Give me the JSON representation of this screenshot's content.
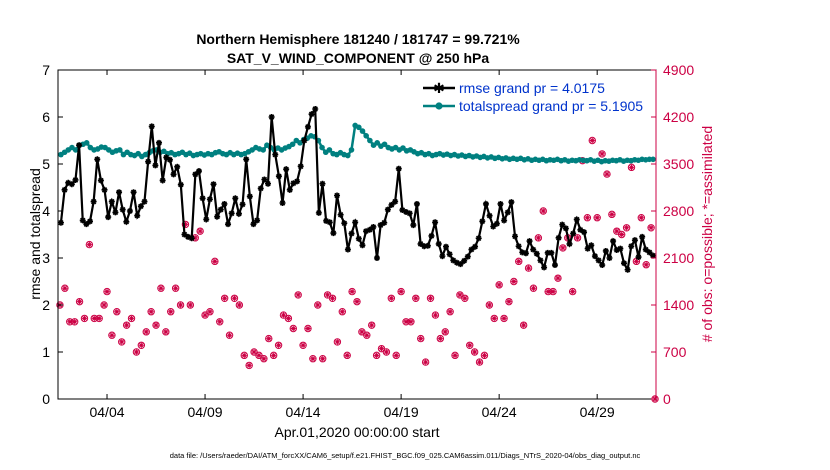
{
  "chart_data": {
    "type": "line",
    "title": [
      "Northern Hemisphere 181240 / 181747 = 99.721%",
      "SAT_V_WIND_COMPONENT @ 250 hPa"
    ],
    "xlabel": "Apr.01,2020 00:00:00 start",
    "ylabel_left": "rmse and totalspread",
    "ylabel_right": "# of obs: o=possible; *=assimilated",
    "xlim": [
      0,
      30.5
    ],
    "ylim_left": [
      0,
      7
    ],
    "ylim_right": [
      0,
      4900
    ],
    "x_ticks": [
      {
        "x": 2.5,
        "label": "04/04"
      },
      {
        "x": 7.5,
        "label": "04/09"
      },
      {
        "x": 12.5,
        "label": "04/14"
      },
      {
        "x": 17.5,
        "label": "04/19"
      },
      {
        "x": 22.5,
        "label": "04/24"
      },
      {
        "x": 27.5,
        "label": "04/29"
      }
    ],
    "y_ticks_left": [
      "0",
      "1",
      "2",
      "3",
      "4",
      "5",
      "6",
      "7"
    ],
    "y_ticks_right": [
      "0",
      "700",
      "1400",
      "2100",
      "2800",
      "3500",
      "4200",
      "4900"
    ],
    "colors": {
      "rmse": "#000000",
      "totalspread": "#008080",
      "obs": "#cc0044",
      "left_axis": "#000000",
      "right_axis": "#cc0044",
      "legend_text": "#0033cc"
    },
    "series": [
      {
        "name": "rmse grand pr = 4.0175",
        "axis": "left",
        "marker": "star",
        "values": [
          3.75,
          4.45,
          4.6,
          4.57,
          4.66,
          5.4,
          3.8,
          3.72,
          3.78,
          4.2,
          5.1,
          4.65,
          4.45,
          3.87,
          4.2,
          3.97,
          4.4,
          4.03,
          3.77,
          4.0,
          4.4,
          3.9,
          4.1,
          4.2,
          5.05,
          5.8,
          4.97,
          5.45,
          4.65,
          5.14,
          5.09,
          4.78,
          4.94,
          4.56,
          3.5,
          3.45,
          3.42,
          4.78,
          4.85,
          4.27,
          3.82,
          4.25,
          4.57,
          3.88,
          4.03,
          4.15,
          3.72,
          3.95,
          4.27,
          3.94,
          4.14,
          5.1,
          4.31,
          3.72,
          3.8,
          4.48,
          4.67,
          4.58,
          6.0,
          5.2,
          4.74,
          4.17,
          4.89,
          4.45,
          4.59,
          4.63,
          4.95,
          5.5,
          5.79,
          6.06,
          6.17,
          3.96,
          4.58,
          3.79,
          3.76,
          3.53,
          4.33,
          3.92,
          3.74,
          3.18,
          3.52,
          3.76,
          3.41,
          3.27,
          3.57,
          3.6,
          3.66,
          3.0,
          3.7,
          3.75,
          4.03,
          4.13,
          4.2,
          4.9,
          4.02,
          3.98,
          3.95,
          3.7,
          4.15,
          3.3,
          3.25,
          3.26,
          3.47,
          3.76,
          3.3,
          3.04,
          3.24,
          3.08,
          2.95,
          2.9,
          2.87,
          2.94,
          3.03,
          3.18,
          3.24,
          3.42,
          3.78,
          4.15,
          3.9,
          3.67,
          3.73,
          4.15,
          3.8,
          3.97,
          4.19,
          3.46,
          3.25,
          3.12,
          3.1,
          3.36,
          3.18,
          3.09,
          2.95,
          2.8,
          3.11,
          3.11,
          2.85,
          3.43,
          3.71,
          3.63,
          3.3,
          3.52,
          3.82,
          3.6,
          3.55,
          3.2,
          3.27,
          3.04,
          2.95,
          2.85,
          3.15,
          3.0,
          3.36,
          3.17,
          3.2,
          2.89,
          2.75,
          3.25,
          3.38,
          3.02,
          3.45,
          3.18,
          3.12,
          3.05
        ]
      },
      {
        "name": "totalspread grand pr = 5.1905",
        "axis": "left",
        "marker": "circle",
        "values": [
          5.2,
          5.25,
          5.3,
          5.35,
          5.3,
          5.4,
          5.42,
          5.45,
          5.35,
          5.3,
          5.32,
          5.36,
          5.35,
          5.3,
          5.25,
          5.28,
          5.3,
          5.2,
          5.25,
          5.2,
          5.18,
          5.22,
          5.16,
          5.2,
          5.24,
          5.28,
          5.3,
          5.25,
          5.27,
          5.22,
          5.24,
          5.2,
          5.22,
          5.25,
          5.2,
          5.23,
          5.18,
          5.2,
          5.22,
          5.19,
          5.22,
          5.2,
          5.24,
          5.26,
          5.22,
          5.2,
          5.24,
          5.2,
          5.23,
          5.2,
          5.22,
          5.26,
          5.3,
          5.35,
          5.32,
          5.3,
          5.4,
          5.35,
          5.3,
          5.34,
          5.3,
          5.34,
          5.37,
          5.42,
          5.5,
          5.45,
          5.52,
          5.55,
          5.6,
          5.58,
          5.5,
          5.35,
          5.25,
          5.3,
          5.22,
          5.2,
          5.24,
          5.2,
          5.18,
          5.3,
          5.82,
          5.78,
          5.7,
          5.6,
          5.5,
          5.4,
          5.45,
          5.38,
          5.42,
          5.35,
          5.32,
          5.35,
          5.3,
          5.34,
          5.28,
          5.3,
          5.26,
          5.22,
          5.24,
          5.2,
          5.22,
          5.18,
          5.2,
          5.22,
          5.19,
          5.21,
          5.18,
          5.2,
          5.17,
          5.19,
          5.16,
          5.18,
          5.15,
          5.17,
          5.14,
          5.16,
          5.13,
          5.15,
          5.12,
          5.14,
          5.11,
          5.13,
          5.1,
          5.12,
          5.1,
          5.12,
          5.09,
          5.11,
          5.08,
          5.1,
          5.08,
          5.1,
          5.07,
          5.09,
          5.08,
          5.1,
          5.07,
          5.09,
          5.06,
          5.08,
          5.07,
          5.09,
          5.08,
          5.07,
          5.09,
          5.06,
          5.08,
          5.05,
          5.07,
          5.06,
          5.08,
          5.07,
          5.09,
          5.06,
          5.08,
          5.07,
          5.09,
          5.08,
          5.1,
          5.09,
          5.1,
          5.1
        ]
      },
      {
        "name": "obs possible/assimilated",
        "axis": "right",
        "marker": "circle-star",
        "points": [
          [
            0.1,
            1400
          ],
          [
            0.35,
            1650
          ],
          [
            0.6,
            1150
          ],
          [
            0.85,
            1150
          ],
          [
            1.1,
            1450
          ],
          [
            1.35,
            1200
          ],
          [
            1.6,
            2300
          ],
          [
            1.85,
            1200
          ],
          [
            2.1,
            1200
          ],
          [
            2.35,
            1400
          ],
          [
            2.5,
            1600
          ],
          [
            2.75,
            950
          ],
          [
            3.0,
            1300
          ],
          [
            3.25,
            850
          ],
          [
            3.5,
            1100
          ],
          [
            3.75,
            1200
          ],
          [
            4.0,
            700
          ],
          [
            4.25,
            800
          ],
          [
            4.5,
            1000
          ],
          [
            4.75,
            1300
          ],
          [
            5.0,
            1100
          ],
          [
            5.25,
            1650
          ],
          [
            5.5,
            1000
          ],
          [
            5.75,
            1300
          ],
          [
            6.0,
            1650
          ],
          [
            6.25,
            1400
          ],
          [
            6.5,
            2600
          ],
          [
            6.75,
            1400
          ],
          [
            7.0,
            2400
          ],
          [
            7.25,
            2500
          ],
          [
            7.5,
            1250
          ],
          [
            7.75,
            1300
          ],
          [
            8.0,
            2050
          ],
          [
            8.25,
            1150
          ],
          [
            8.5,
            1500
          ],
          [
            8.75,
            950
          ],
          [
            9.0,
            1500
          ],
          [
            9.25,
            1400
          ],
          [
            9.5,
            650
          ],
          [
            9.75,
            500
          ],
          [
            10.0,
            700
          ],
          [
            10.25,
            650
          ],
          [
            10.5,
            600
          ],
          [
            10.75,
            900
          ],
          [
            11.0,
            650
          ],
          [
            11.25,
            800
          ],
          [
            11.5,
            1250
          ],
          [
            11.75,
            1200
          ],
          [
            12.0,
            1050
          ],
          [
            12.25,
            1550
          ],
          [
            12.5,
            800
          ],
          [
            12.75,
            1050
          ],
          [
            13.0,
            600
          ],
          [
            13.25,
            1400
          ],
          [
            13.5,
            600
          ],
          [
            13.75,
            1550
          ],
          [
            14.0,
            1500
          ],
          [
            14.25,
            850
          ],
          [
            14.5,
            1300
          ],
          [
            14.75,
            650
          ],
          [
            15.0,
            1600
          ],
          [
            15.25,
            1450
          ],
          [
            15.5,
            1000
          ],
          [
            15.75,
            950
          ],
          [
            16.0,
            1100
          ],
          [
            16.25,
            650
          ],
          [
            16.5,
            750
          ],
          [
            16.75,
            700
          ],
          [
            17.0,
            1500
          ],
          [
            17.25,
            650
          ],
          [
            17.5,
            1600
          ],
          [
            17.75,
            1150
          ],
          [
            18.0,
            1150
          ],
          [
            18.25,
            1500
          ],
          [
            18.5,
            900
          ],
          [
            18.75,
            550
          ],
          [
            19.0,
            1500
          ],
          [
            19.25,
            1250
          ],
          [
            19.5,
            900
          ],
          [
            19.75,
            1000
          ],
          [
            20.0,
            1300
          ],
          [
            20.25,
            650
          ],
          [
            20.5,
            1550
          ],
          [
            20.75,
            1500
          ],
          [
            21.0,
            800
          ],
          [
            21.25,
            700
          ],
          [
            21.5,
            550
          ],
          [
            21.75,
            650
          ],
          [
            22.0,
            1400
          ],
          [
            22.25,
            1200
          ],
          [
            22.5,
            1700
          ],
          [
            22.75,
            1200
          ],
          [
            23.0,
            1450
          ],
          [
            23.25,
            1750
          ],
          [
            23.5,
            2050
          ],
          [
            23.75,
            1100
          ],
          [
            24.0,
            1950
          ],
          [
            24.25,
            1650
          ],
          [
            24.5,
            2400
          ],
          [
            24.75,
            2800
          ],
          [
            25.0,
            1600
          ],
          [
            25.25,
            1600
          ],
          [
            25.5,
            1800
          ],
          [
            25.75,
            2250
          ],
          [
            26.0,
            2400
          ],
          [
            26.25,
            1600
          ],
          [
            26.5,
            2400
          ],
          [
            26.75,
            3550
          ],
          [
            27.0,
            2700
          ],
          [
            27.25,
            3850
          ],
          [
            27.5,
            2700
          ],
          [
            27.75,
            3650
          ],
          [
            28.0,
            3350
          ],
          [
            28.25,
            2750
          ],
          [
            28.5,
            2500
          ],
          [
            28.75,
            2450
          ],
          [
            29.0,
            2550
          ],
          [
            29.25,
            3450
          ],
          [
            29.5,
            2050
          ],
          [
            29.75,
            2700
          ],
          [
            30.0,
            2000
          ],
          [
            30.25,
            2550
          ],
          [
            30.45,
            0
          ]
        ]
      }
    ],
    "legend": {
      "placement": "top-right"
    }
  },
  "footer": "data file: /Users/raeder/DAI/ATM_forcXX/CAM6_setup/f.e21.FHIST_BGC.f09_025.CAM6assim.011/Diags_NTrS_2020-04/obs_diag_output.nc"
}
